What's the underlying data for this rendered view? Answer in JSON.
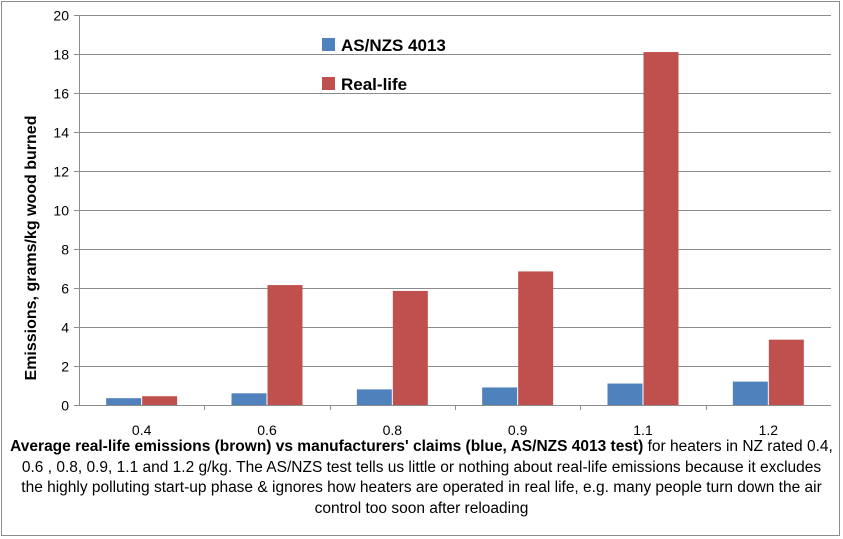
{
  "chart_data": {
    "type": "bar",
    "categories": [
      "0.4",
      "0.6",
      "0.8",
      "0.9",
      "1.1",
      "1.2"
    ],
    "series": [
      {
        "name": "AS/NZS 4013",
        "color": "#4f81bd",
        "values": [
          0.35,
          0.6,
          0.8,
          0.9,
          1.1,
          1.2
        ]
      },
      {
        "name": "Real-life",
        "color": "#c0504d",
        "values": [
          0.45,
          6.15,
          5.85,
          6.85,
          18.1,
          3.35
        ]
      }
    ],
    "ylabel": "Emissions, grams/kg  wood burned",
    "xlabel": "",
    "ylim": [
      0,
      20
    ],
    "yticks": [
      0,
      2,
      4,
      6,
      8,
      10,
      12,
      14,
      16,
      18,
      20
    ],
    "grid": true,
    "legend_position": "top-left"
  },
  "caption": {
    "bold": "Average real-life emissions (brown) vs manufacturers' claims (blue, AS/NZS 4013 test)",
    "rest": " for heaters in NZ rated 0.4, 0.6 , 0.8, 0.9, 1.1 and 1.2 g/kg. The AS/NZS test tells us little or nothing about real-life emissions because it excludes the highly polluting start-up phase & ignores how heaters are  operated in real life, e.g. many people turn down the air control too soon after reloading"
  }
}
